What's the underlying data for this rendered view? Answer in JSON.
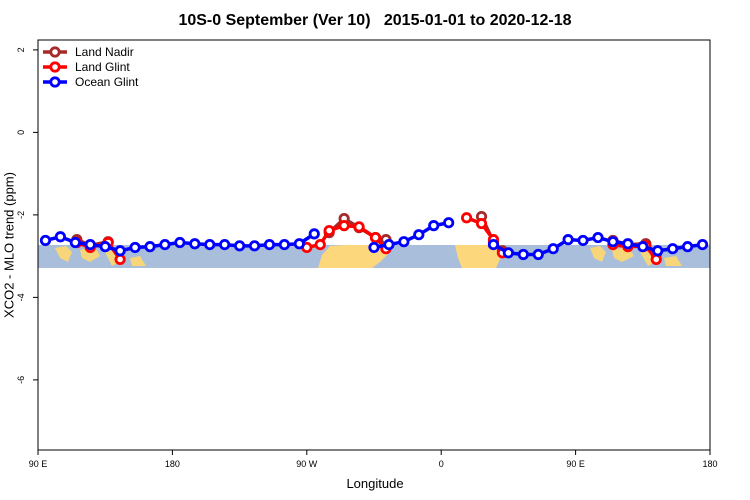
{
  "chart_data": {
    "type": "line",
    "title": "10S-0 September (Ver 10)   2015-01-01 to 2020-12-18",
    "x_label": "Longitude",
    "y_label": "XCO2 - MLO trend (ppm)",
    "xlim": [
      90,
      540
    ],
    "xticks": [
      {
        "value": 90,
        "label": "90 E"
      },
      {
        "value": 180,
        "label": "180"
      },
      {
        "value": 270,
        "label": "90 W"
      },
      {
        "value": 360,
        "label": "0"
      },
      {
        "value": 450,
        "label": "90 E"
      },
      {
        "value": 540,
        "label": "180"
      }
    ],
    "ylim": [
      -7.7,
      2.24
    ],
    "yticks": [
      2,
      0,
      -2,
      -4,
      -6
    ],
    "legend": "top-left",
    "series": [
      {
        "name": "Land Nadir",
        "color": "#a52a2a",
        "x": [
          116,
          125,
          137,
          null,
          285,
          295,
          305,
          316,
          323,
          null,
          387,
          395,
          401,
          null,
          475,
          485,
          497,
          504
        ],
        "values": [
          -2.6,
          -2.74,
          -2.65,
          null,
          -2.43,
          -2.09,
          -2.31,
          -2.55,
          -2.6,
          null,
          -2.04,
          -2.65,
          -2.87,
          null,
          -2.62,
          -2.72,
          -2.7,
          -2.96
        ]
      },
      {
        "name": "Land Glint",
        "color": "#ff0000",
        "x": [
          116,
          125,
          137,
          145,
          null,
          270,
          279,
          285,
          295,
          305,
          316,
          323,
          null,
          377,
          387,
          395,
          401,
          null,
          475,
          485,
          497,
          504
        ],
        "values": [
          -2.67,
          -2.79,
          -2.67,
          -3.08,
          null,
          -2.79,
          -2.72,
          -2.38,
          -2.26,
          -2.29,
          -2.55,
          -2.82,
          null,
          -2.07,
          -2.21,
          -2.6,
          -2.92,
          null,
          -2.72,
          -2.77,
          -2.75,
          -3.08
        ]
      },
      {
        "name": "Ocean Glint",
        "color": "#0000ff",
        "x": [
          95,
          105,
          115,
          125,
          135,
          145,
          155,
          165,
          175,
          185,
          195,
          205,
          215,
          225,
          235,
          245,
          255,
          265,
          275,
          285,
          295,
          305,
          315,
          325,
          335,
          345,
          355,
          365,
          375,
          385,
          395,
          405,
          415,
          425,
          435,
          445,
          455,
          465,
          475,
          485,
          495,
          505,
          515,
          525,
          535
        ],
        "values": [
          -2.62,
          -2.53,
          -2.67,
          -2.72,
          -2.77,
          -2.87,
          -2.79,
          -2.77,
          -2.72,
          -2.67,
          -2.7,
          -2.72,
          -2.72,
          -2.75,
          -2.75,
          -2.72,
          -2.72,
          -2.7,
          -2.46,
          null,
          null,
          null,
          -2.79,
          -2.72,
          -2.65,
          -2.48,
          -2.26,
          -2.19,
          null,
          null,
          -2.72,
          -2.92,
          -2.96,
          -2.96,
          -2.82,
          -2.6,
          -2.62,
          -2.55,
          -2.65,
          -2.7,
          -2.77,
          -2.87,
          -2.82,
          -2.77,
          -2.72
        ]
      }
    ]
  }
}
